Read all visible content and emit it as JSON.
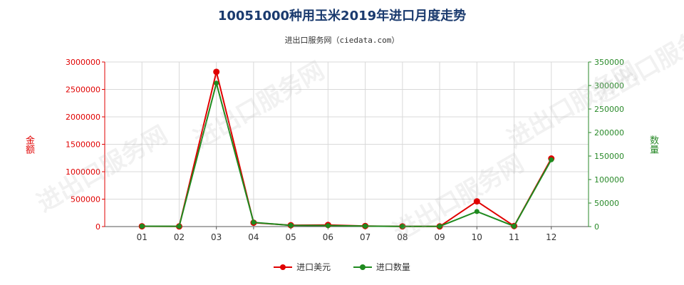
{
  "title": "10051000种用玉米2019年进口月度走势",
  "subtitle": "进出口服务网（ciedata.com）",
  "watermark": "进出口服务网",
  "chart_data": {
    "type": "line",
    "categories": [
      "01",
      "02",
      "03",
      "04",
      "05",
      "06",
      "07",
      "08",
      "09",
      "10",
      "11",
      "12"
    ],
    "y_left": {
      "label": "金额",
      "ticks": [
        "0",
        "500000",
        "1000000",
        "1500000",
        "2000000",
        "2500000",
        "3000000"
      ],
      "ylim": [
        0,
        3000000
      ],
      "color": "#e00000"
    },
    "y_right": {
      "label": "数量",
      "ticks": [
        "0",
        "50000",
        "100000",
        "150000",
        "200000",
        "250000",
        "300000",
        "350000"
      ],
      "ylim": [
        0,
        350000
      ],
      "color": "#2a8a2a"
    },
    "series": [
      {
        "name": "进口美元",
        "axis": "left",
        "color": "#e00000",
        "values": [
          5000,
          3000,
          2820000,
          70000,
          25000,
          30000,
          10000,
          4000,
          3000,
          460000,
          10000,
          1240000
        ]
      },
      {
        "name": "进口数量",
        "axis": "right",
        "color": "#1f8a1f",
        "values": [
          800,
          500,
          305000,
          9000,
          2500,
          2000,
          1000,
          300,
          500,
          32000,
          800,
          142000
        ]
      }
    ],
    "grid": true,
    "legend_position": "bottom"
  }
}
